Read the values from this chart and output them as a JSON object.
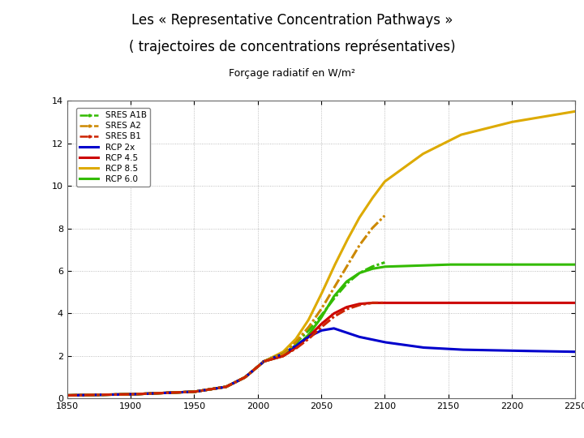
{
  "title_line1": "Les « Representative Concentration Pathways »",
  "title_line2": "( trajectoires de concentrations représentatives)",
  "subtitle": "Forçage radiatif en W/m²",
  "xlim": [
    1850,
    2250
  ],
  "ylim": [
    0,
    14
  ],
  "xticks": [
    1850,
    1900,
    1950,
    2000,
    2050,
    2100,
    2150,
    2200,
    2250
  ],
  "yticks": [
    0,
    2,
    4,
    6,
    8,
    10,
    12,
    14
  ],
  "bg_color": "#ffffff",
  "grid_color": "#888888",
  "c_rcp85": "#ddaa00",
  "c_rcp60": "#33bb00",
  "c_rcp45": "#cc0000",
  "c_rcp26": "#0000cc",
  "c_sres_a1b": "#33bb00",
  "c_sres_a2": "#cc8800",
  "c_sres_b1": "#cc2200",
  "hist_x": [
    1850,
    1900,
    1950,
    1975,
    1990,
    2000,
    2005
  ],
  "hist_y": [
    0.15,
    0.2,
    0.32,
    0.55,
    1.0,
    1.5,
    1.75
  ],
  "rcp85_x": [
    2005,
    2020,
    2030,
    2040,
    2050,
    2060,
    2070,
    2080,
    2090,
    2100,
    2130,
    2160,
    2200,
    2250
  ],
  "rcp85_y": [
    1.75,
    2.2,
    2.8,
    3.7,
    4.9,
    6.2,
    7.4,
    8.5,
    9.4,
    10.2,
    11.5,
    12.4,
    13.0,
    13.5
  ],
  "rcp60_x": [
    2005,
    2020,
    2030,
    2040,
    2050,
    2060,
    2070,
    2080,
    2090,
    2100,
    2150,
    2200,
    2250
  ],
  "rcp60_y": [
    1.75,
    2.0,
    2.4,
    3.0,
    3.8,
    4.8,
    5.5,
    5.9,
    6.1,
    6.2,
    6.3,
    6.3,
    6.3
  ],
  "rcp45_x": [
    2005,
    2020,
    2030,
    2040,
    2050,
    2060,
    2070,
    2080,
    2090,
    2100,
    2150,
    2200,
    2250
  ],
  "rcp45_y": [
    1.75,
    2.0,
    2.4,
    2.9,
    3.5,
    4.0,
    4.3,
    4.45,
    4.5,
    4.5,
    4.5,
    4.5,
    4.5
  ],
  "rcp26_x": [
    2005,
    2020,
    2030,
    2040,
    2050,
    2060,
    2070,
    2080,
    2100,
    2130,
    2160,
    2200,
    2250
  ],
  "rcp26_y": [
    1.75,
    2.1,
    2.5,
    2.9,
    3.2,
    3.3,
    3.1,
    2.9,
    2.65,
    2.4,
    2.3,
    2.25,
    2.2
  ],
  "sres_a1b_x": [
    2005,
    2020,
    2030,
    2040,
    2050,
    2060,
    2070,
    2080,
    2090,
    2100
  ],
  "sres_a1b_y": [
    1.75,
    2.1,
    2.6,
    3.2,
    3.9,
    4.7,
    5.4,
    5.9,
    6.2,
    6.4
  ],
  "sres_a2_x": [
    2005,
    2020,
    2030,
    2040,
    2050,
    2060,
    2070,
    2080,
    2090,
    2100
  ],
  "sres_a2_y": [
    1.75,
    2.1,
    2.65,
    3.35,
    4.2,
    5.2,
    6.2,
    7.2,
    8.0,
    8.6
  ],
  "sres_b1_x": [
    2005,
    2020,
    2030,
    2040,
    2050,
    2060,
    2070,
    2080,
    2090,
    2100
  ],
  "sres_b1_y": [
    1.75,
    2.0,
    2.35,
    2.8,
    3.35,
    3.85,
    4.2,
    4.4,
    4.5,
    4.5
  ],
  "lw": 2.2,
  "title_fontsize": 12,
  "subtitle_fontsize": 9,
  "tick_fontsize": 8
}
